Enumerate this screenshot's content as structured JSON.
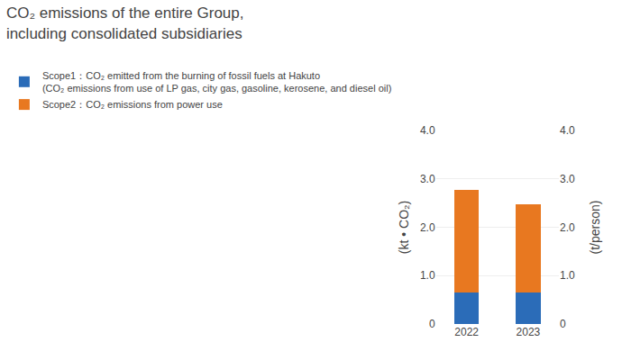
{
  "chart_data": {
    "type": "bar",
    "stacked": true,
    "title": "CO₂ emissions of the entire Group,\nincluding consolidated subsidiaries",
    "categories": [
      "2022",
      "2023"
    ],
    "series": [
      {
        "name": "Scope1：CO₂ emitted from the burning of fossil fuels at Hakuto\n(CO₂ emissions from use of LP gas, city gas, gasoline, kerosene, and diesel oil)",
        "color": "#2b6cb8",
        "values": [
          0.65,
          0.65
        ]
      },
      {
        "name": "Scope2：CO₂ emissions from power use",
        "color": "#e87820",
        "values": [
          2.12,
          1.82
        ]
      }
    ],
    "ylabel": "(kt • CO₂)",
    "y2label": "(t/person)",
    "ylim": [
      0,
      4.0
    ],
    "yticks": [
      0,
      {
        "value": 1.0,
        "label": "1.0"
      },
      {
        "value": 2.0,
        "label": "2.0"
      },
      {
        "value": 3.0,
        "label": "3.0"
      },
      {
        "value": 4.0,
        "label": "4.0"
      }
    ],
    "y2lim": [
      0,
      4.0
    ],
    "y2ticks": [
      0,
      {
        "value": 1.0,
        "label": "1.0"
      },
      {
        "value": 2.0,
        "label": "2.0"
      },
      {
        "value": 3.0,
        "label": "3.0"
      },
      {
        "value": 4.0,
        "label": "4.0"
      }
    ],
    "grid": true,
    "legend": "top-left"
  }
}
